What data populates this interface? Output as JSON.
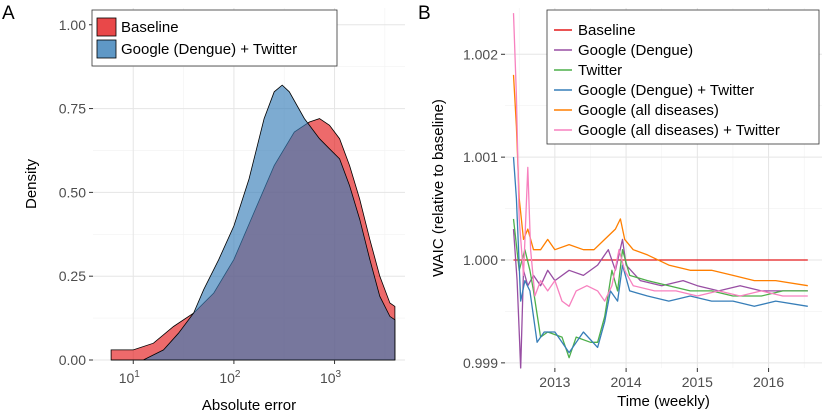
{
  "chart_data": [
    {
      "panel": "A",
      "type": "area",
      "title": "",
      "xlabel": "Absolute error",
      "ylabel": "Density",
      "x_scale": "log10",
      "xlim_log10": [
        0.6,
        3.7
      ],
      "ylim": [
        0,
        1.05
      ],
      "x_ticks": [
        {
          "log10": 1,
          "base": "10",
          "exp": "1"
        },
        {
          "log10": 2,
          "base": "10",
          "exp": "2"
        },
        {
          "log10": 3,
          "base": "10",
          "exp": "3"
        }
      ],
      "y_ticks": [
        0.0,
        0.25,
        0.5,
        0.75,
        1.0
      ],
      "y_tick_labels": [
        "0.00",
        "0.25",
        "0.50",
        "0.75",
        "1.00"
      ],
      "legend_position": "top-left",
      "series": [
        {
          "name": "Baseline",
          "color": "#E41A1C",
          "points_log10": [
            [
              0.78,
              0.03
            ],
            [
              1.0,
              0.03
            ],
            [
              1.2,
              0.05
            ],
            [
              1.4,
              0.1
            ],
            [
              1.6,
              0.14
            ],
            [
              1.8,
              0.2
            ],
            [
              2.0,
              0.3
            ],
            [
              2.2,
              0.44
            ],
            [
              2.4,
              0.58
            ],
            [
              2.6,
              0.68
            ],
            [
              2.75,
              0.71
            ],
            [
              2.85,
              0.72
            ],
            [
              2.95,
              0.7
            ],
            [
              3.05,
              0.66
            ],
            [
              3.15,
              0.58
            ],
            [
              3.25,
              0.48
            ],
            [
              3.35,
              0.36
            ],
            [
              3.45,
              0.25
            ],
            [
              3.55,
              0.17
            ],
            [
              3.6,
              0.16
            ]
          ]
        },
        {
          "name": "Google (Dengue) + Twitter",
          "color": "#377EB8",
          "points_log10": [
            [
              0.78,
              0.0
            ],
            [
              1.1,
              0.0
            ],
            [
              1.3,
              0.03
            ],
            [
              1.45,
              0.08
            ],
            [
              1.6,
              0.14
            ],
            [
              1.7,
              0.21
            ],
            [
              1.85,
              0.3
            ],
            [
              2.0,
              0.4
            ],
            [
              2.15,
              0.54
            ],
            [
              2.3,
              0.72
            ],
            [
              2.4,
              0.8
            ],
            [
              2.48,
              0.82
            ],
            [
              2.55,
              0.8
            ],
            [
              2.7,
              0.72
            ],
            [
              2.85,
              0.66
            ],
            [
              2.95,
              0.63
            ],
            [
              3.05,
              0.6
            ],
            [
              3.15,
              0.52
            ],
            [
              3.25,
              0.42
            ],
            [
              3.35,
              0.3
            ],
            [
              3.45,
              0.19
            ],
            [
              3.55,
              0.13
            ],
            [
              3.6,
              0.12
            ]
          ]
        }
      ]
    },
    {
      "panel": "B",
      "type": "line",
      "title": "",
      "xlabel": "Time (weekly)",
      "ylabel": "WAIC (relative to baseline)",
      "xlim": [
        2012.3,
        2016.75
      ],
      "ylim": [
        0.99895,
        1.00245
      ],
      "x_ticks": [
        2013,
        2014,
        2015,
        2016
      ],
      "x_tick_labels": [
        "2013",
        "2014",
        "2015",
        "2016"
      ],
      "y_ticks": [
        0.999,
        1.0,
        1.001,
        1.002
      ],
      "y_tick_labels": [
        "0.999",
        "1.000",
        "1.001",
        "1.002"
      ],
      "legend_position": "top-right",
      "series": [
        {
          "name": "Baseline",
          "color": "#E41A1C",
          "points": [
            [
              2012.42,
              1.0
            ],
            [
              2016.55,
              1.0
            ]
          ]
        },
        {
          "name": "Google (Dengue)",
          "color": "#984EA3",
          "points": [
            [
              2012.42,
              1.0003
            ],
            [
              2012.47,
              0.9998
            ],
            [
              2012.52,
              0.99895
            ],
            [
              2012.56,
              0.9999
            ],
            [
              2012.62,
              0.99975
            ],
            [
              2012.7,
              0.99985
            ],
            [
              2012.8,
              0.99975
            ],
            [
              2012.9,
              0.9999
            ],
            [
              2013.0,
              0.9998
            ],
            [
              2013.2,
              0.9999
            ],
            [
              2013.4,
              0.99985
            ],
            [
              2013.6,
              0.99995
            ],
            [
              2013.75,
              1.0001
            ],
            [
              2013.85,
              0.9999
            ],
            [
              2013.95,
              1.0002
            ],
            [
              2014.0,
              0.99995
            ],
            [
              2014.2,
              0.9998
            ],
            [
              2014.5,
              0.99975
            ],
            [
              2014.8,
              0.9998
            ],
            [
              2015.0,
              0.99975
            ],
            [
              2015.3,
              0.9997
            ],
            [
              2015.6,
              0.99975
            ],
            [
              2015.9,
              0.9997
            ],
            [
              2016.2,
              0.9997
            ],
            [
              2016.55,
              0.9997
            ]
          ]
        },
        {
          "name": "Twitter",
          "color": "#4DAF4A",
          "points": [
            [
              2012.42,
              1.0004
            ],
            [
              2012.5,
              0.9999
            ],
            [
              2012.58,
              1.0001
            ],
            [
              2012.65,
              0.9999
            ],
            [
              2012.7,
              0.9997
            ],
            [
              2012.8,
              0.99925
            ],
            [
              2012.9,
              0.9993
            ],
            [
              2013.1,
              0.99925
            ],
            [
              2013.2,
              0.99905
            ],
            [
              2013.3,
              0.99925
            ],
            [
              2013.5,
              0.9992
            ],
            [
              2013.6,
              0.9992
            ],
            [
              2013.7,
              0.99945
            ],
            [
              2013.8,
              0.9999
            ],
            [
              2013.88,
              0.9997
            ],
            [
              2013.95,
              1.0001
            ],
            [
              2014.05,
              0.99985
            ],
            [
              2014.3,
              0.9998
            ],
            [
              2014.6,
              0.99975
            ],
            [
              2014.9,
              0.9997
            ],
            [
              2015.2,
              0.9997
            ],
            [
              2015.5,
              0.99965
            ],
            [
              2015.9,
              0.99965
            ],
            [
              2016.2,
              0.9997
            ],
            [
              2016.55,
              0.9997
            ]
          ]
        },
        {
          "name": "Google (Dengue) + Twitter",
          "color": "#377EB8",
          "points": [
            [
              2012.42,
              1.001
            ],
            [
              2012.46,
              1.0006
            ],
            [
              2012.52,
              0.9996
            ],
            [
              2012.58,
              0.9998
            ],
            [
              2012.65,
              0.9997
            ],
            [
              2012.75,
              0.9992
            ],
            [
              2012.85,
              0.9993
            ],
            [
              2013.0,
              0.9993
            ],
            [
              2013.1,
              0.9992
            ],
            [
              2013.2,
              0.9991
            ],
            [
              2013.4,
              0.9993
            ],
            [
              2013.6,
              0.99915
            ],
            [
              2013.7,
              0.9994
            ],
            [
              2013.78,
              0.9997
            ],
            [
              2013.88,
              0.9996
            ],
            [
              2013.95,
              0.99995
            ],
            [
              2014.05,
              0.9997
            ],
            [
              2014.3,
              0.99965
            ],
            [
              2014.6,
              0.9996
            ],
            [
              2014.9,
              0.99965
            ],
            [
              2015.2,
              0.9996
            ],
            [
              2015.5,
              0.9996
            ],
            [
              2015.8,
              0.99955
            ],
            [
              2016.1,
              0.9996
            ],
            [
              2016.55,
              0.99955
            ]
          ]
        },
        {
          "name": "Google (all diseases)",
          "color": "#FF7F00",
          "points": [
            [
              2012.42,
              1.0018
            ],
            [
              2012.46,
              1.0013
            ],
            [
              2012.5,
              1.0006
            ],
            [
              2012.56,
              1.0002
            ],
            [
              2012.62,
              1.0003
            ],
            [
              2012.7,
              1.0001
            ],
            [
              2012.8,
              1.0001
            ],
            [
              2012.9,
              1.0002
            ],
            [
              2013.0,
              1.0001
            ],
            [
              2013.2,
              1.00015
            ],
            [
              2013.4,
              1.0001
            ],
            [
              2013.55,
              1.0001
            ],
            [
              2013.7,
              1.0002
            ],
            [
              2013.85,
              1.0003
            ],
            [
              2013.92,
              1.0004
            ],
            [
              2013.98,
              1.0002
            ],
            [
              2014.1,
              1.0001
            ],
            [
              2014.3,
              1.00005
            ],
            [
              2014.6,
              0.99995
            ],
            [
              2014.9,
              0.9999
            ],
            [
              2015.2,
              0.9999
            ],
            [
              2015.5,
              0.99985
            ],
            [
              2015.8,
              0.9998
            ],
            [
              2016.1,
              0.9998
            ],
            [
              2016.55,
              0.99975
            ]
          ]
        },
        {
          "name": "Google (all diseases) + Twitter",
          "color": "#F781BF",
          "points": [
            [
              2012.42,
              1.0024
            ],
            [
              2012.46,
              1.0016
            ],
            [
              2012.5,
              1.0004
            ],
            [
              2012.56,
              0.99985
            ],
            [
              2012.62,
              1.0009
            ],
            [
              2012.66,
              1.0001
            ],
            [
              2012.72,
              0.99965
            ],
            [
              2012.8,
              0.9998
            ],
            [
              2012.9,
              0.9997
            ],
            [
              2013.0,
              0.9998
            ],
            [
              2013.1,
              0.9996
            ],
            [
              2013.2,
              0.99955
            ],
            [
              2013.3,
              0.9997
            ],
            [
              2013.45,
              0.99975
            ],
            [
              2013.6,
              0.9997
            ],
            [
              2013.7,
              0.9996
            ],
            [
              2013.8,
              0.99975
            ],
            [
              2013.9,
              1.0001
            ],
            [
              2013.98,
              0.9999
            ],
            [
              2014.1,
              0.99975
            ],
            [
              2014.4,
              0.9997
            ],
            [
              2014.7,
              0.9997
            ],
            [
              2015.0,
              0.99965
            ],
            [
              2015.3,
              0.9997
            ],
            [
              2015.6,
              0.99965
            ],
            [
              2015.9,
              0.9997
            ],
            [
              2016.2,
              0.99965
            ],
            [
              2016.55,
              0.99965
            ]
          ]
        }
      ]
    }
  ],
  "labels": {
    "panel_a": "A",
    "panel_b": "B"
  }
}
